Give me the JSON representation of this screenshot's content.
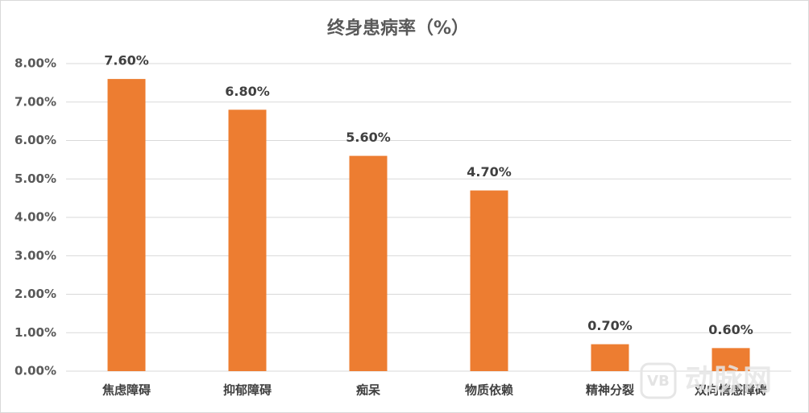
{
  "chart_data": {
    "type": "bar",
    "title": "终身患病率（%）",
    "categories": [
      "焦虑障碍",
      "抑郁障碍",
      "痴呆",
      "物质依赖",
      "精神分裂",
      "双向情感障碍"
    ],
    "values": [
      7.6,
      6.8,
      5.6,
      4.7,
      0.7,
      0.6
    ],
    "value_labels": [
      "7.60%",
      "6.80%",
      "5.60%",
      "4.70%",
      "0.70%",
      "0.60%"
    ],
    "color": "#ed7d31",
    "ylim": [
      0,
      8
    ],
    "yticks": [
      {
        "value": 0,
        "label": "0.00%"
      },
      {
        "value": 1,
        "label": "1.00%"
      },
      {
        "value": 2,
        "label": "2.00%"
      },
      {
        "value": 3,
        "label": "3.00%"
      },
      {
        "value": 4,
        "label": "4.00%"
      },
      {
        "value": 5,
        "label": "5.00%"
      },
      {
        "value": 6,
        "label": "6.00%"
      },
      {
        "value": 7,
        "label": "7.00%"
      },
      {
        "value": 8,
        "label": "8.00%"
      }
    ],
    "grid": true,
    "watermark_logo": "VB",
    "watermark": "动脉网"
  }
}
